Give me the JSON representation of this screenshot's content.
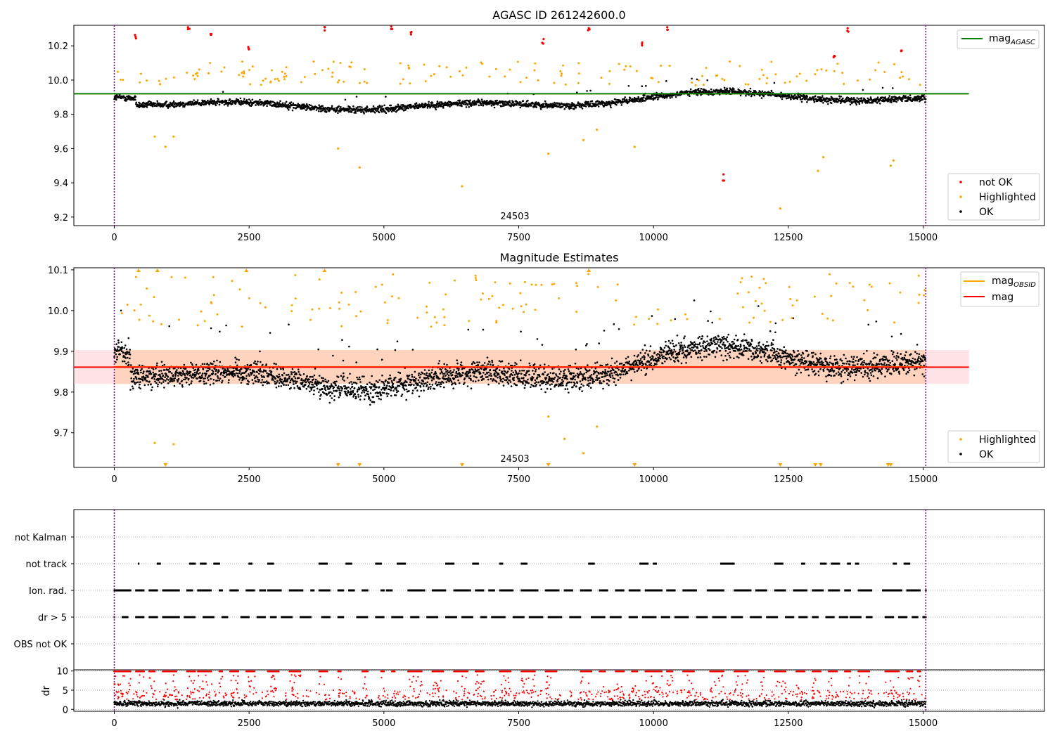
{
  "figure": {
    "title_top": "AGASC ID 261242600.0",
    "title_middle": "Magnitude Estimates"
  },
  "colors": {
    "ok": "#000000",
    "highlighted": "#ffa500",
    "not_ok": "#ff0000",
    "agasc_line": "#008000",
    "obsid_line": "#ffa500",
    "mag_line": "#ff0000",
    "band_fill": "#ffd7c9",
    "obs_boundary": "#800080"
  },
  "chart_data": [
    {
      "type": "scatter",
      "panel": "top",
      "title": "AGASC ID 261242600.0",
      "xlim": [
        -750,
        17250
      ],
      "ylim": [
        9.15,
        10.32
      ],
      "xticks": [
        0,
        2500,
        5000,
        7500,
        10000,
        12500,
        15000
      ],
      "yticks": [
        9.2,
        9.4,
        9.6,
        9.8,
        10.0,
        10.2
      ],
      "ytick_labels": [
        "9.2",
        "9.4",
        "9.6",
        "9.8",
        "10.0",
        "10.2"
      ],
      "hlines": [
        {
          "name": "mag_AGASC",
          "label_main": "mag",
          "label_sub": "AGASC",
          "y": 9.92,
          "x_range": [
            -750,
            15850
          ]
        }
      ],
      "vlines": [
        0,
        15050
      ],
      "obsid_label": {
        "text": "24503",
        "x": 7500
      },
      "legend": {
        "placement": "top-right",
        "entries": [
          "mag_AGASC"
        ]
      },
      "legend2": {
        "placement": "lower-right",
        "entries": [
          "not OK",
          "Highlighted",
          "OK"
        ]
      },
      "series": [
        {
          "name": "not OK",
          "values": [
            [
              400,
              10.26
            ],
            [
              1380,
              10.31
            ],
            [
              1800,
              10.26
            ],
            [
              2500,
              10.19
            ],
            [
              3900,
              10.31
            ],
            [
              5150,
              10.3
            ],
            [
              5500,
              10.27
            ],
            [
              7950,
              10.23
            ],
            [
              8800,
              10.29
            ],
            [
              9800,
              10.22
            ],
            [
              10250,
              10.3
            ],
            [
              11300,
              9.43
            ],
            [
              13350,
              10.13
            ],
            [
              13600,
              10.3
            ],
            [
              14600,
              10.18
            ]
          ]
        },
        {
          "name": "Highlighted",
          "values": [
            [
              750,
              9.67
            ],
            [
              950,
              9.61
            ],
            [
              1100,
              9.67
            ],
            [
              1750,
              10.04
            ],
            [
              2400,
              10.05
            ],
            [
              4150,
              9.6
            ],
            [
              4550,
              9.49
            ],
            [
              6450,
              9.38
            ],
            [
              8050,
              9.57
            ],
            [
              8700,
              9.65
            ],
            [
              8950,
              9.71
            ],
            [
              9650,
              9.61
            ],
            [
              12350,
              9.25
            ],
            [
              13050,
              9.47
            ],
            [
              13150,
              9.55
            ],
            [
              14400,
              9.5
            ],
            [
              14450,
              9.53
            ]
          ]
        }
      ]
    },
    {
      "type": "scatter",
      "panel": "middle",
      "title": "Magnitude Estimates",
      "xlim": [
        -750,
        17250
      ],
      "ylim": [
        9.615,
        10.105
      ],
      "xticks": [
        0,
        2500,
        5000,
        7500,
        10000,
        12500,
        15000
      ],
      "yticks": [
        9.7,
        9.8,
        9.9,
        10.0,
        10.1
      ],
      "ytick_labels": [
        "9.7",
        "9.8",
        "9.9",
        "10.0",
        "10.1"
      ],
      "hlines": [
        {
          "name": "mag_OBSID",
          "label_main": "mag",
          "label_sub": "OBSID",
          "y": 9.862,
          "x_range": [
            0,
            15050
          ]
        },
        {
          "name": "mag",
          "label_main": "mag",
          "label_sub": "",
          "y": 9.861,
          "x_range": [
            -750,
            15850
          ]
        }
      ],
      "band": {
        "y_range": [
          9.82,
          9.903
        ],
        "x_range": [
          -750,
          15850
        ]
      },
      "vlines": [
        0,
        15050
      ],
      "obsid_label": {
        "text": "24503",
        "x": 7500
      },
      "legend": {
        "placement": "top-right",
        "entries": [
          "mag_OBSID",
          "mag"
        ]
      },
      "legend2": {
        "placement": "lower-right",
        "entries": [
          "Highlighted",
          "OK"
        ]
      },
      "series": [
        {
          "name": "Highlighted (below range)",
          "values": [
            950,
            4150,
            4550,
            6450,
            8050,
            9650,
            12350,
            13000,
            13100,
            14350,
            14400
          ]
        },
        {
          "name": "Highlighted (above range)",
          "values": [
            450,
            800,
            2450,
            3900,
            8800
          ]
        }
      ]
    },
    {
      "type": "scatter",
      "panel": "flags",
      "xlim": [
        -750,
        17250
      ],
      "categories": [
        "not Kalman",
        "not track",
        "Ion. rad.",
        "dr > 5",
        "OBS not OK"
      ],
      "series": [
        {
          "name": "not track",
          "values": [
            [
              450,
              450
            ],
            [
              800,
              850
            ],
            [
              1400,
              1500
            ],
            [
              1600,
              1700
            ],
            [
              1850,
              1950
            ],
            [
              2500,
              2550
            ],
            [
              2850,
              2950
            ],
            [
              3800,
              3950
            ],
            [
              4300,
              4400
            ],
            [
              4850,
              4950
            ],
            [
              5250,
              5400
            ],
            [
              6150,
              6300
            ],
            [
              6650,
              6750
            ],
            [
              7150,
              7200
            ],
            [
              7550,
              7650
            ],
            [
              8800,
              8900
            ],
            [
              9750,
              9900
            ],
            [
              10000,
              10050
            ],
            [
              11250,
              11500
            ],
            [
              12250,
              12400
            ],
            [
              12750,
              12800
            ],
            [
              13100,
              13200
            ],
            [
              13300,
              13450
            ],
            [
              13600,
              13650
            ],
            [
              13750,
              13800
            ],
            [
              14450,
              14500
            ],
            [
              14650,
              14750
            ]
          ]
        },
        {
          "name": "Ion. rad.",
          "values": [
            [
              0,
              300
            ],
            [
              400,
              550
            ],
            [
              650,
              800
            ],
            [
              900,
              1200
            ],
            [
              1350,
              1450
            ],
            [
              1550,
              1800
            ],
            [
              1950,
              2000
            ],
            [
              2150,
              2300
            ],
            [
              2450,
              2600
            ],
            [
              2700,
              2800
            ],
            [
              2850,
              3100
            ],
            [
              3250,
              3500
            ],
            [
              3650,
              3700
            ],
            [
              3800,
              4000
            ],
            [
              4150,
              4250
            ],
            [
              4350,
              4450
            ],
            [
              4600,
              4700
            ],
            [
              4950,
              5000
            ],
            [
              5050,
              5150
            ],
            [
              5450,
              5750
            ],
            [
              5900,
              6150
            ],
            [
              6300,
              6600
            ],
            [
              6700,
              6850
            ],
            [
              6950,
              7050
            ],
            [
              7150,
              7400
            ],
            [
              7550,
              7850
            ],
            [
              8000,
              8250
            ],
            [
              8350,
              8500
            ],
            [
              8650,
              8850
            ],
            [
              9000,
              9150
            ],
            [
              9300,
              9450
            ],
            [
              9550,
              9750
            ],
            [
              9850,
              10150
            ],
            [
              10250,
              10400
            ],
            [
              10550,
              10800
            ],
            [
              11000,
              11300
            ],
            [
              11500,
              11800
            ],
            [
              11900,
              12100
            ],
            [
              12250,
              12450
            ],
            [
              12600,
              12850
            ],
            [
              12950,
              13150
            ],
            [
              13250,
              13450
            ],
            [
              13550,
              13650
            ],
            [
              13800,
              14050
            ],
            [
              14250,
              14600
            ],
            [
              14700,
              14950
            ],
            [
              15050,
              15050
            ]
          ]
        },
        {
          "name": "dr > 5",
          "values": [
            [
              0,
              0
            ],
            [
              150,
              250
            ],
            [
              400,
              550
            ],
            [
              650,
              800
            ],
            [
              900,
              1200
            ],
            [
              1300,
              1500
            ],
            [
              1650,
              1850
            ],
            [
              2000,
              2100
            ],
            [
              2350,
              2500
            ],
            [
              2650,
              2800
            ],
            [
              2900,
              3000
            ],
            [
              3100,
              3300
            ],
            [
              3450,
              3650
            ],
            [
              3850,
              4000
            ],
            [
              4150,
              4250
            ],
            [
              4500,
              4700
            ],
            [
              4850,
              5000
            ],
            [
              5150,
              5350
            ],
            [
              5500,
              5650
            ],
            [
              5800,
              6000
            ],
            [
              6150,
              6350
            ],
            [
              6450,
              6650
            ],
            [
              6800,
              6900
            ],
            [
              7000,
              7250
            ],
            [
              7400,
              7600
            ],
            [
              7700,
              7950
            ],
            [
              8050,
              8300
            ],
            [
              8450,
              8650
            ],
            [
              8850,
              9100
            ],
            [
              9200,
              9400
            ],
            [
              9550,
              9700
            ],
            [
              9800,
              10050
            ],
            [
              10150,
              10300
            ],
            [
              10400,
              10650
            ],
            [
              10800,
              11000
            ],
            [
              11100,
              11350
            ],
            [
              11450,
              11650
            ],
            [
              11800,
              12000
            ],
            [
              12100,
              12300
            ],
            [
              12450,
              12600
            ],
            [
              12700,
              12850
            ],
            [
              12950,
              13050
            ],
            [
              13200,
              13350
            ],
            [
              13450,
              13600
            ],
            [
              13650,
              13850
            ],
            [
              13950,
              14050
            ],
            [
              14300,
              14450
            ],
            [
              14550,
              14700
            ],
            [
              14800,
              14900
            ],
            [
              15000,
              15050
            ]
          ]
        }
      ]
    },
    {
      "type": "scatter",
      "panel": "dr",
      "ylabel": "dr",
      "xlim": [
        -750,
        17250
      ],
      "ylim": [
        -0.5,
        10.3
      ],
      "xticks": [
        0,
        2500,
        5000,
        7500,
        10000,
        12500,
        15000
      ],
      "yticks": [
        0,
        5,
        10
      ],
      "ytick_labels": [
        "0",
        "5",
        "10"
      ],
      "series": [
        {
          "name": "dr clipped (red)",
          "values": [
            [
              0,
              300
            ],
            [
              400,
              550
            ],
            [
              650,
              750
            ],
            [
              900,
              1150
            ],
            [
              1350,
              1500
            ],
            [
              1550,
              1800
            ],
            [
              1950,
              2000
            ],
            [
              2150,
              2300
            ],
            [
              2450,
              2600
            ],
            [
              2850,
              3050
            ],
            [
              3250,
              3450
            ],
            [
              3800,
              3950
            ],
            [
              4150,
              4200
            ],
            [
              4600,
              4700
            ],
            [
              4950,
              5000
            ],
            [
              5150,
              5200
            ],
            [
              5450,
              5700
            ],
            [
              5900,
              6100
            ],
            [
              6300,
              6550
            ],
            [
              6700,
              6850
            ],
            [
              7150,
              7350
            ],
            [
              7550,
              7800
            ],
            [
              8000,
              8200
            ],
            [
              8650,
              8850
            ],
            [
              9000,
              9100
            ],
            [
              9300,
              9450
            ],
            [
              9600,
              9700
            ],
            [
              9850,
              10150
            ],
            [
              10250,
              10350
            ],
            [
              10550,
              10750
            ],
            [
              11050,
              11300
            ],
            [
              11500,
              11750
            ],
            [
              11950,
              12050
            ],
            [
              12250,
              12450
            ],
            [
              12650,
              12800
            ],
            [
              12950,
              13100
            ],
            [
              13250,
              13400
            ],
            [
              13550,
              13650
            ],
            [
              13800,
              14000
            ],
            [
              14300,
              14550
            ],
            [
              14700,
              14800
            ],
            [
              14900,
              14950
            ]
          ]
        }
      ]
    }
  ]
}
